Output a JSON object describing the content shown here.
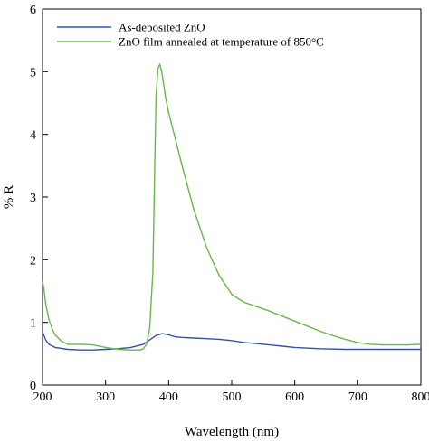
{
  "chart_data": {
    "type": "line",
    "xlabel": "Wavelength (nm)",
    "ylabel": "% R",
    "xlim": [
      200,
      800
    ],
    "ylim": [
      0,
      6
    ],
    "x_ticks": [
      200,
      300,
      400,
      500,
      600,
      700,
      800
    ],
    "y_ticks": [
      0,
      1,
      2,
      3,
      4,
      5,
      6
    ],
    "grid": false,
    "legend_position": "top-left",
    "series": [
      {
        "name": "As-deposited ZnO",
        "color": "#3a4fa8",
        "x": [
          200,
          205,
          210,
          220,
          240,
          260,
          280,
          300,
          320,
          340,
          360,
          370,
          380,
          390,
          400,
          410,
          420,
          440,
          460,
          480,
          500,
          520,
          540,
          560,
          580,
          600,
          640,
          680,
          720,
          760,
          800
        ],
        "y": [
          0.85,
          0.72,
          0.65,
          0.6,
          0.57,
          0.56,
          0.56,
          0.57,
          0.58,
          0.6,
          0.65,
          0.72,
          0.79,
          0.82,
          0.8,
          0.77,
          0.76,
          0.75,
          0.74,
          0.73,
          0.71,
          0.68,
          0.66,
          0.64,
          0.62,
          0.6,
          0.58,
          0.57,
          0.57,
          0.57,
          0.57
        ]
      },
      {
        "name": "ZnO film annealed at temperature of 850°C",
        "color": "#6ab74a",
        "x": [
          200,
          202,
          205,
          210,
          215,
          220,
          230,
          240,
          260,
          280,
          300,
          320,
          340,
          355,
          360,
          365,
          370,
          375,
          378,
          380,
          383,
          386,
          389,
          392,
          395,
          400,
          410,
          420,
          440,
          460,
          480,
          500,
          510,
          520,
          540,
          560,
          580,
          600,
          620,
          640,
          660,
          680,
          700,
          720,
          740,
          760,
          780,
          800
        ],
        "y": [
          1.65,
          1.55,
          1.3,
          1.05,
          0.9,
          0.8,
          0.7,
          0.65,
          0.65,
          0.64,
          0.6,
          0.57,
          0.56,
          0.56,
          0.58,
          0.65,
          0.9,
          1.8,
          3.5,
          4.6,
          5.05,
          5.12,
          5.0,
          4.8,
          4.6,
          4.35,
          3.95,
          3.55,
          2.8,
          2.2,
          1.75,
          1.45,
          1.38,
          1.32,
          1.25,
          1.18,
          1.1,
          1.02,
          0.94,
          0.86,
          0.79,
          0.73,
          0.68,
          0.65,
          0.64,
          0.64,
          0.64,
          0.65
        ]
      }
    ]
  }
}
